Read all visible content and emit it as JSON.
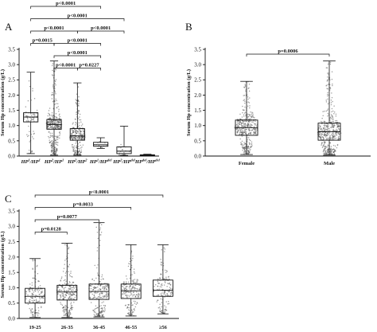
{
  "chart_data": [
    {
      "type": "box",
      "panel_label": "A",
      "ylabel": "Serum Hp concentration (g/L)",
      "ylim": [
        0,
        3.5
      ],
      "yticks": [
        "0.0",
        "0.5",
        "1.0",
        "1.5",
        "2.0",
        "2.5",
        "3.0",
        "3.5"
      ],
      "categories": [
        {
          "base": "HP",
          "sup1": "1",
          "mid": "/HP",
          "sup2": "1"
        },
        {
          "base": "HP",
          "sup1": "2",
          "mid": "/HP",
          "sup2": "1"
        },
        {
          "base": "HP",
          "sup1": "2",
          "mid": "/HP",
          "sup2": "2"
        },
        {
          "base": "HP",
          "sup1": "1",
          "mid": "/HP",
          "sup2": "del"
        },
        {
          "base": "HP",
          "sup1": "2",
          "mid": "/HP",
          "sup2": "del"
        },
        {
          "base": "HP",
          "sup1": "del",
          "mid": "/HP",
          "sup2": "del"
        }
      ],
      "boxes": [
        {
          "min": 0.08,
          "q1": 1.12,
          "median": 1.28,
          "q3": 1.42,
          "max": 2.75,
          "n": 70,
          "spread": 0.28
        },
        {
          "min": 0.03,
          "q1": 0.88,
          "median": 1.03,
          "q3": 1.2,
          "max": 3.12,
          "n": 380,
          "spread": 0.3
        },
        {
          "min": 0.03,
          "q1": 0.52,
          "median": 0.66,
          "q3": 0.9,
          "max": 2.4,
          "n": 300,
          "spread": 0.24
        },
        {
          "min": 0.25,
          "q1": 0.32,
          "median": 0.37,
          "q3": 0.45,
          "max": 0.6,
          "n": 12,
          "spread": 0.1
        },
        {
          "min": 0.02,
          "q1": 0.08,
          "median": 0.16,
          "q3": 0.3,
          "max": 0.98,
          "n": 20,
          "spread": 0.18
        },
        {
          "min": 0.01,
          "q1": 0.02,
          "median": 0.03,
          "q3": 0.04,
          "max": 0.06,
          "n": 0,
          "spread": 0
        }
      ],
      "comparisons": [
        {
          "from": 0,
          "to": 3,
          "label": "p<0.0001",
          "level": 0
        },
        {
          "from": 0,
          "to": 4,
          "label": "p<0.0001",
          "level": 1
        },
        {
          "from": 0,
          "to": 2,
          "label": "p<0.0001",
          "level": 2
        },
        {
          "from": 2,
          "to": 4,
          "label": "p<0.0001",
          "level": 2
        },
        {
          "from": 0,
          "to": 1,
          "label": "p=0.0015",
          "level": 3
        },
        {
          "from": 1,
          "to": 3,
          "label": "p<0.0001",
          "level": 3
        },
        {
          "from": 1,
          "to": 3,
          "label": "p<0.0001",
          "level": 4
        },
        {
          "from": 1,
          "to": 2,
          "label": "p<0.0001",
          "level": 5
        },
        {
          "from": 2,
          "to": 3,
          "label": "p=0.0227",
          "level": 5
        }
      ]
    },
    {
      "type": "box",
      "panel_label": "B",
      "ylabel": "Serum Hp concentration (g/L)",
      "ylim": [
        0,
        3.5
      ],
      "yticks": [
        "0.0",
        "0.5",
        "1.0",
        "1.5",
        "2.0",
        "2.5",
        "3.0",
        "3.5"
      ],
      "categories": [
        "Female",
        "Male"
      ],
      "boxes": [
        {
          "min": 0.05,
          "q1": 0.68,
          "median": 0.93,
          "q3": 1.18,
          "max": 2.45,
          "n": 420,
          "spread": 0.38
        },
        {
          "min": 0.03,
          "q1": 0.52,
          "median": 0.8,
          "q3": 1.08,
          "max": 3.12,
          "n": 460,
          "spread": 0.4
        }
      ],
      "comparisons": [
        {
          "from": 0,
          "to": 1,
          "label": "p=0.0006",
          "level": 0
        }
      ]
    },
    {
      "type": "box",
      "panel_label": "C",
      "ylabel": "Serum Hp concentration (g/L)",
      "ylim": [
        0,
        3.5
      ],
      "yticks": [
        "0.0",
        "0.5",
        "1.0",
        "1.5",
        "2.0",
        "2.5",
        "3.0",
        "3.5"
      ],
      "categories": [
        "19-25",
        "26-35",
        "36-45",
        "46-55",
        "≥56"
      ],
      "boxes": [
        {
          "min": 0.03,
          "q1": 0.5,
          "median": 0.72,
          "q3": 0.98,
          "max": 1.95,
          "n": 160,
          "spread": 0.34
        },
        {
          "min": 0.03,
          "q1": 0.6,
          "median": 0.86,
          "q3": 1.08,
          "max": 2.45,
          "n": 260,
          "spread": 0.38
        },
        {
          "min": 0.05,
          "q1": 0.62,
          "median": 0.88,
          "q3": 1.12,
          "max": 3.12,
          "n": 240,
          "spread": 0.38
        },
        {
          "min": 0.08,
          "q1": 0.65,
          "median": 0.9,
          "q3": 1.12,
          "max": 2.4,
          "n": 200,
          "spread": 0.36
        },
        {
          "min": 0.15,
          "q1": 0.72,
          "median": 0.92,
          "q3": 1.25,
          "max": 2.4,
          "n": 160,
          "spread": 0.36
        }
      ],
      "comparisons": [
        {
          "from": 0,
          "to": 4,
          "label": "p<0.0001",
          "level": 0
        },
        {
          "from": 0,
          "to": 3,
          "label": "p=0.0033",
          "level": 1
        },
        {
          "from": 0,
          "to": 2,
          "label": "p=0.0077",
          "level": 2
        },
        {
          "from": 0,
          "to": 1,
          "label": "p=0.0128",
          "level": 3
        }
      ]
    }
  ]
}
